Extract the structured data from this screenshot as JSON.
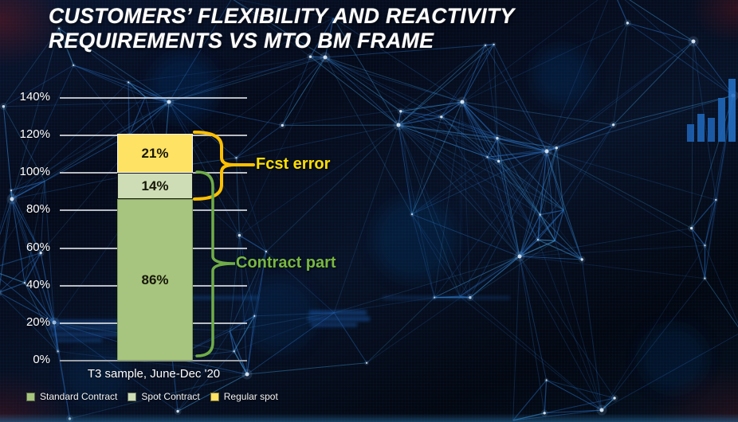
{
  "title": {
    "line1": "CUSTOMERS’ FLEXIBILITY AND REACTIVITY",
    "line2": "REQUIREMENTS VS MTO BM FRAME"
  },
  "annotations": {
    "fcst_error": "Fcst error",
    "contract_part": "Contract part"
  },
  "chart_data": {
    "type": "bar",
    "stacked": true,
    "categories": [
      "T3 sample, June-Dec '20"
    ],
    "series": [
      {
        "name": "Standard Contract",
        "values": [
          86
        ],
        "data_label": "86%",
        "color": "#A7C57E"
      },
      {
        "name": "Spot Contract",
        "values": [
          14
        ],
        "data_label": "14%",
        "color": "#CEDDB5"
      },
      {
        "name": "Regular spot",
        "values": [
          21
        ],
        "data_label": "21%",
        "color": "#FDE263"
      }
    ],
    "xlabel": "T3 sample, June-Dec '20",
    "ylabel": "",
    "ylim": [
      0,
      140
    ],
    "yticks": [
      "0%",
      "20%",
      "40%",
      "60%",
      "80%",
      "100%",
      "120%",
      "140%"
    ],
    "grid": true,
    "legend_position": "bottom",
    "brackets": [
      {
        "text": "Fcst error",
        "covers": "top of bar (121%) down to 86%",
        "color": "#FFC000"
      },
      {
        "text": "Contract part",
        "covers": "100% down to 0%",
        "color": "#70AD47"
      }
    ]
  },
  "colors": {
    "fcst_error_text": "#FFDF00",
    "contract_part_text": "#79B840",
    "brace_yellow": "#FFC000",
    "brace_green": "#70AD47"
  }
}
